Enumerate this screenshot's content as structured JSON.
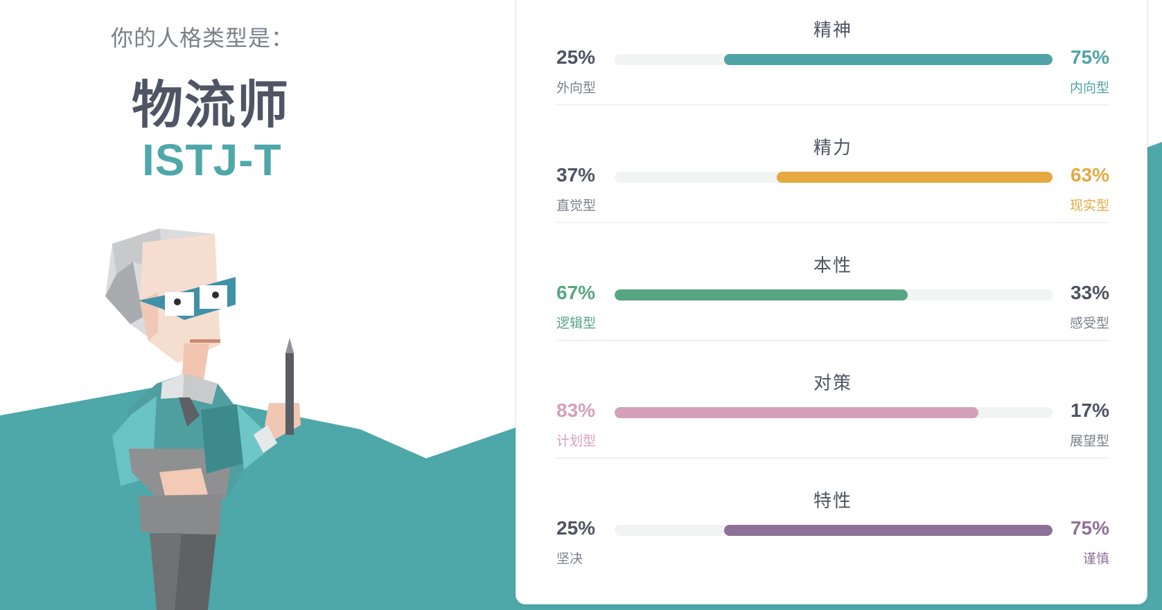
{
  "colors": {
    "teal": "#4ea7a9",
    "teal_dark": "#3f9395",
    "card_border": "#e4e6ea",
    "text_dark": "#4e5361",
    "text_gray": "#7b7f88"
  },
  "result": {
    "subtitle": "你的人格类型是：",
    "type_name": "物流师",
    "type_code": "ISTJ-T"
  },
  "traits": [
    {
      "title": "精神",
      "left_percent": 25,
      "right_percent": 75,
      "left_pct_label": "25%",
      "right_pct_label": "75%",
      "left_label": "外向型",
      "right_label": "内向型",
      "dominant": "right",
      "color": "#4fa3a5"
    },
    {
      "title": "精力",
      "left_percent": 37,
      "right_percent": 63,
      "left_pct_label": "37%",
      "right_pct_label": "63%",
      "left_label": "直觉型",
      "right_label": "现实型",
      "dominant": "right",
      "color": "#e4a941"
    },
    {
      "title": "本性",
      "left_percent": 67,
      "right_percent": 33,
      "left_pct_label": "67%",
      "right_pct_label": "33%",
      "left_label": "逻辑型",
      "right_label": "感受型",
      "dominant": "left",
      "color": "#56a583"
    },
    {
      "title": "对策",
      "left_percent": 83,
      "right_percent": 17,
      "left_pct_label": "83%",
      "right_pct_label": "17%",
      "left_label": "计划型",
      "right_label": "展望型",
      "dominant": "left",
      "color": "#d5a0b9"
    },
    {
      "title": "特性",
      "left_percent": 25,
      "right_percent": 75,
      "left_pct_label": "25%",
      "right_pct_label": "75%",
      "left_label": "坚决",
      "right_label": "谨慎",
      "dominant": "right",
      "color": "#8e7198"
    }
  ]
}
